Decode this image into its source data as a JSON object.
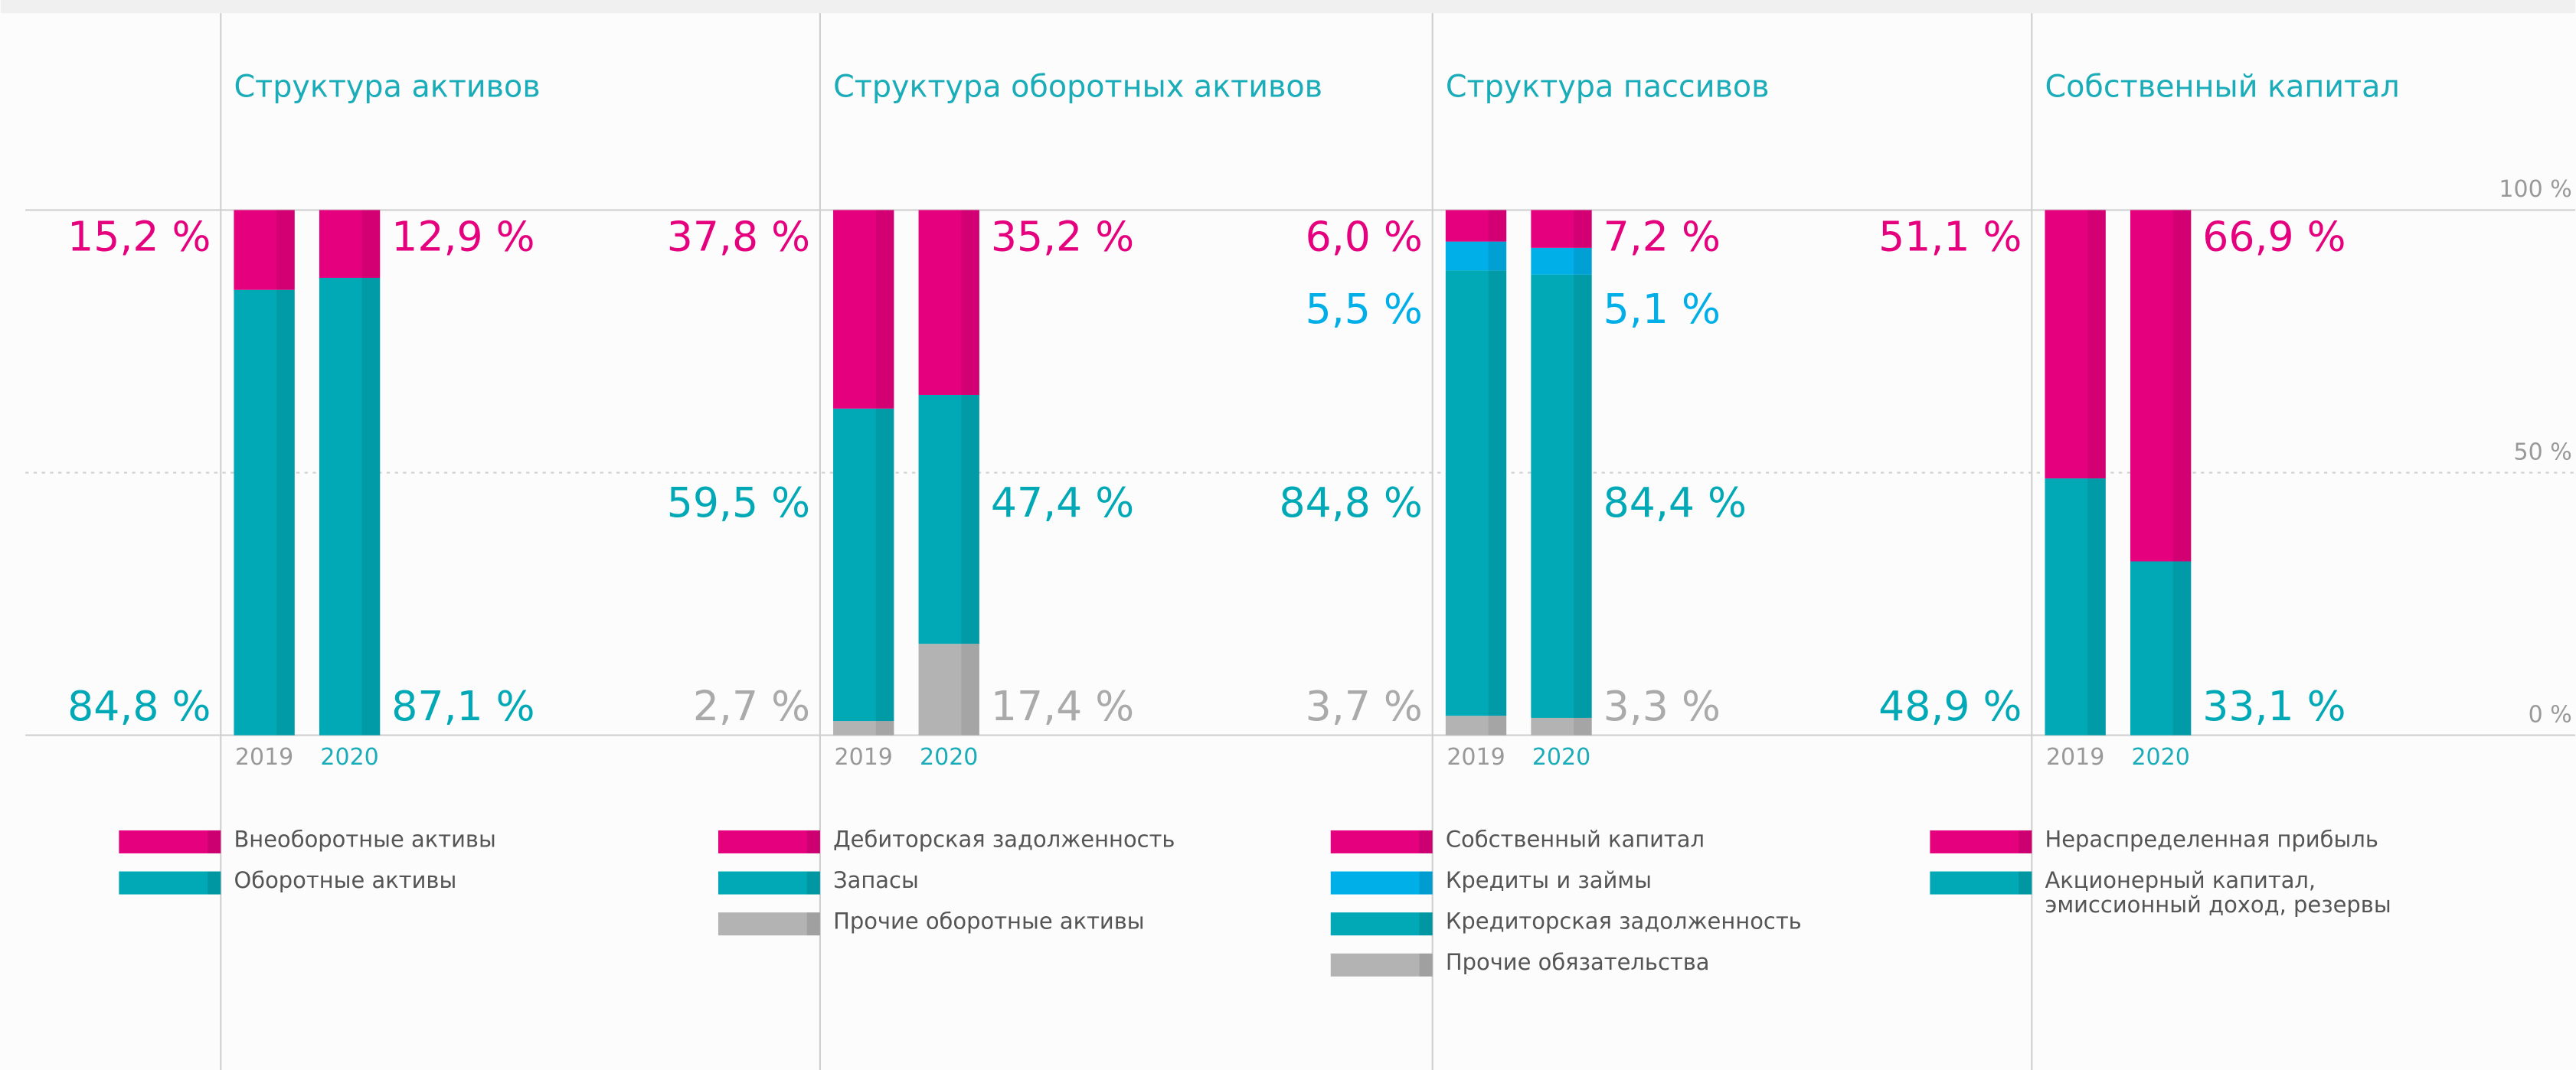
{
  "chart_data": [
    {
      "type": "bar",
      "stacked": true,
      "title": "Структура активов",
      "categories": [
        "2019",
        "2020"
      ],
      "ylim": [
        0,
        100
      ],
      "series": [
        {
          "name": "Внеоборотные активы",
          "color": "#e5007e",
          "values": [
            15.2,
            12.9
          ],
          "value_labels": [
            "15,2 %",
            "12,9 %"
          ]
        },
        {
          "name": "Оборотные активы",
          "color": "#00a9b5",
          "values": [
            84.8,
            87.1
          ],
          "value_labels": [
            "84,8 %",
            "87,1 %"
          ]
        }
      ]
    },
    {
      "type": "bar",
      "stacked": true,
      "title": "Структура оборотных активов",
      "categories": [
        "2019",
        "2020"
      ],
      "ylim": [
        0,
        100
      ],
      "series": [
        {
          "name": "Дебиторская задолженность",
          "color": "#e5007e",
          "values": [
            37.8,
            35.2
          ],
          "value_labels": [
            "37,8 %",
            "35,2 %"
          ]
        },
        {
          "name": "Запасы",
          "color": "#00a9b5",
          "values": [
            59.5,
            47.4
          ],
          "value_labels": [
            "59,5 %",
            "47,4 %"
          ]
        },
        {
          "name": "Прочие оборотные активы",
          "color": "#b3b3b3",
          "values": [
            2.7,
            17.4
          ],
          "value_labels": [
            "2,7 %",
            "17,4 %"
          ]
        }
      ]
    },
    {
      "type": "bar",
      "stacked": true,
      "title": "Структура пассивов",
      "categories": [
        "2019",
        "2020"
      ],
      "ylim": [
        0,
        100
      ],
      "series": [
        {
          "name": "Собственный капитал",
          "color": "#e5007e",
          "values": [
            6.0,
            7.2
          ],
          "value_labels": [
            "6,0 %",
            "7,2 %"
          ]
        },
        {
          "name": "Кредиты и займы",
          "color": "#00aee8",
          "values": [
            5.5,
            5.1
          ],
          "value_labels": [
            "5,5 %",
            "5,1 %"
          ]
        },
        {
          "name": "Кредиторская задолженность",
          "color": "#00a9b5",
          "values": [
            84.8,
            84.4
          ],
          "value_labels": [
            "84,8 %",
            "84,4 %"
          ]
        },
        {
          "name": "Прочие обязательства",
          "color": "#b3b3b3",
          "values": [
            3.7,
            3.3
          ],
          "value_labels": [
            "3,7 %",
            "3,3 %"
          ]
        }
      ]
    },
    {
      "type": "bar",
      "stacked": true,
      "title": "Собственный капитал",
      "categories": [
        "2019",
        "2020"
      ],
      "ylim": [
        0,
        100
      ],
      "yticks": [
        {
          "value": 0,
          "label": "0 %"
        },
        {
          "value": 50,
          "label": "50 %"
        },
        {
          "value": 100,
          "label": "100 %"
        }
      ],
      "grid": true,
      "series": [
        {
          "name": "Нераспределенная прибыль",
          "color": "#e5007e",
          "values": [
            51.1,
            66.9
          ],
          "value_labels": [
            "51,1 %",
            "66,9 %"
          ]
        },
        {
          "name": "Акционерный капитал, эмиссионный доход, резервы",
          "color": "#00a9b5",
          "values": [
            48.9,
            33.1
          ],
          "value_labels": [
            "48,9 %",
            "33,1 %"
          ]
        }
      ]
    }
  ]
}
